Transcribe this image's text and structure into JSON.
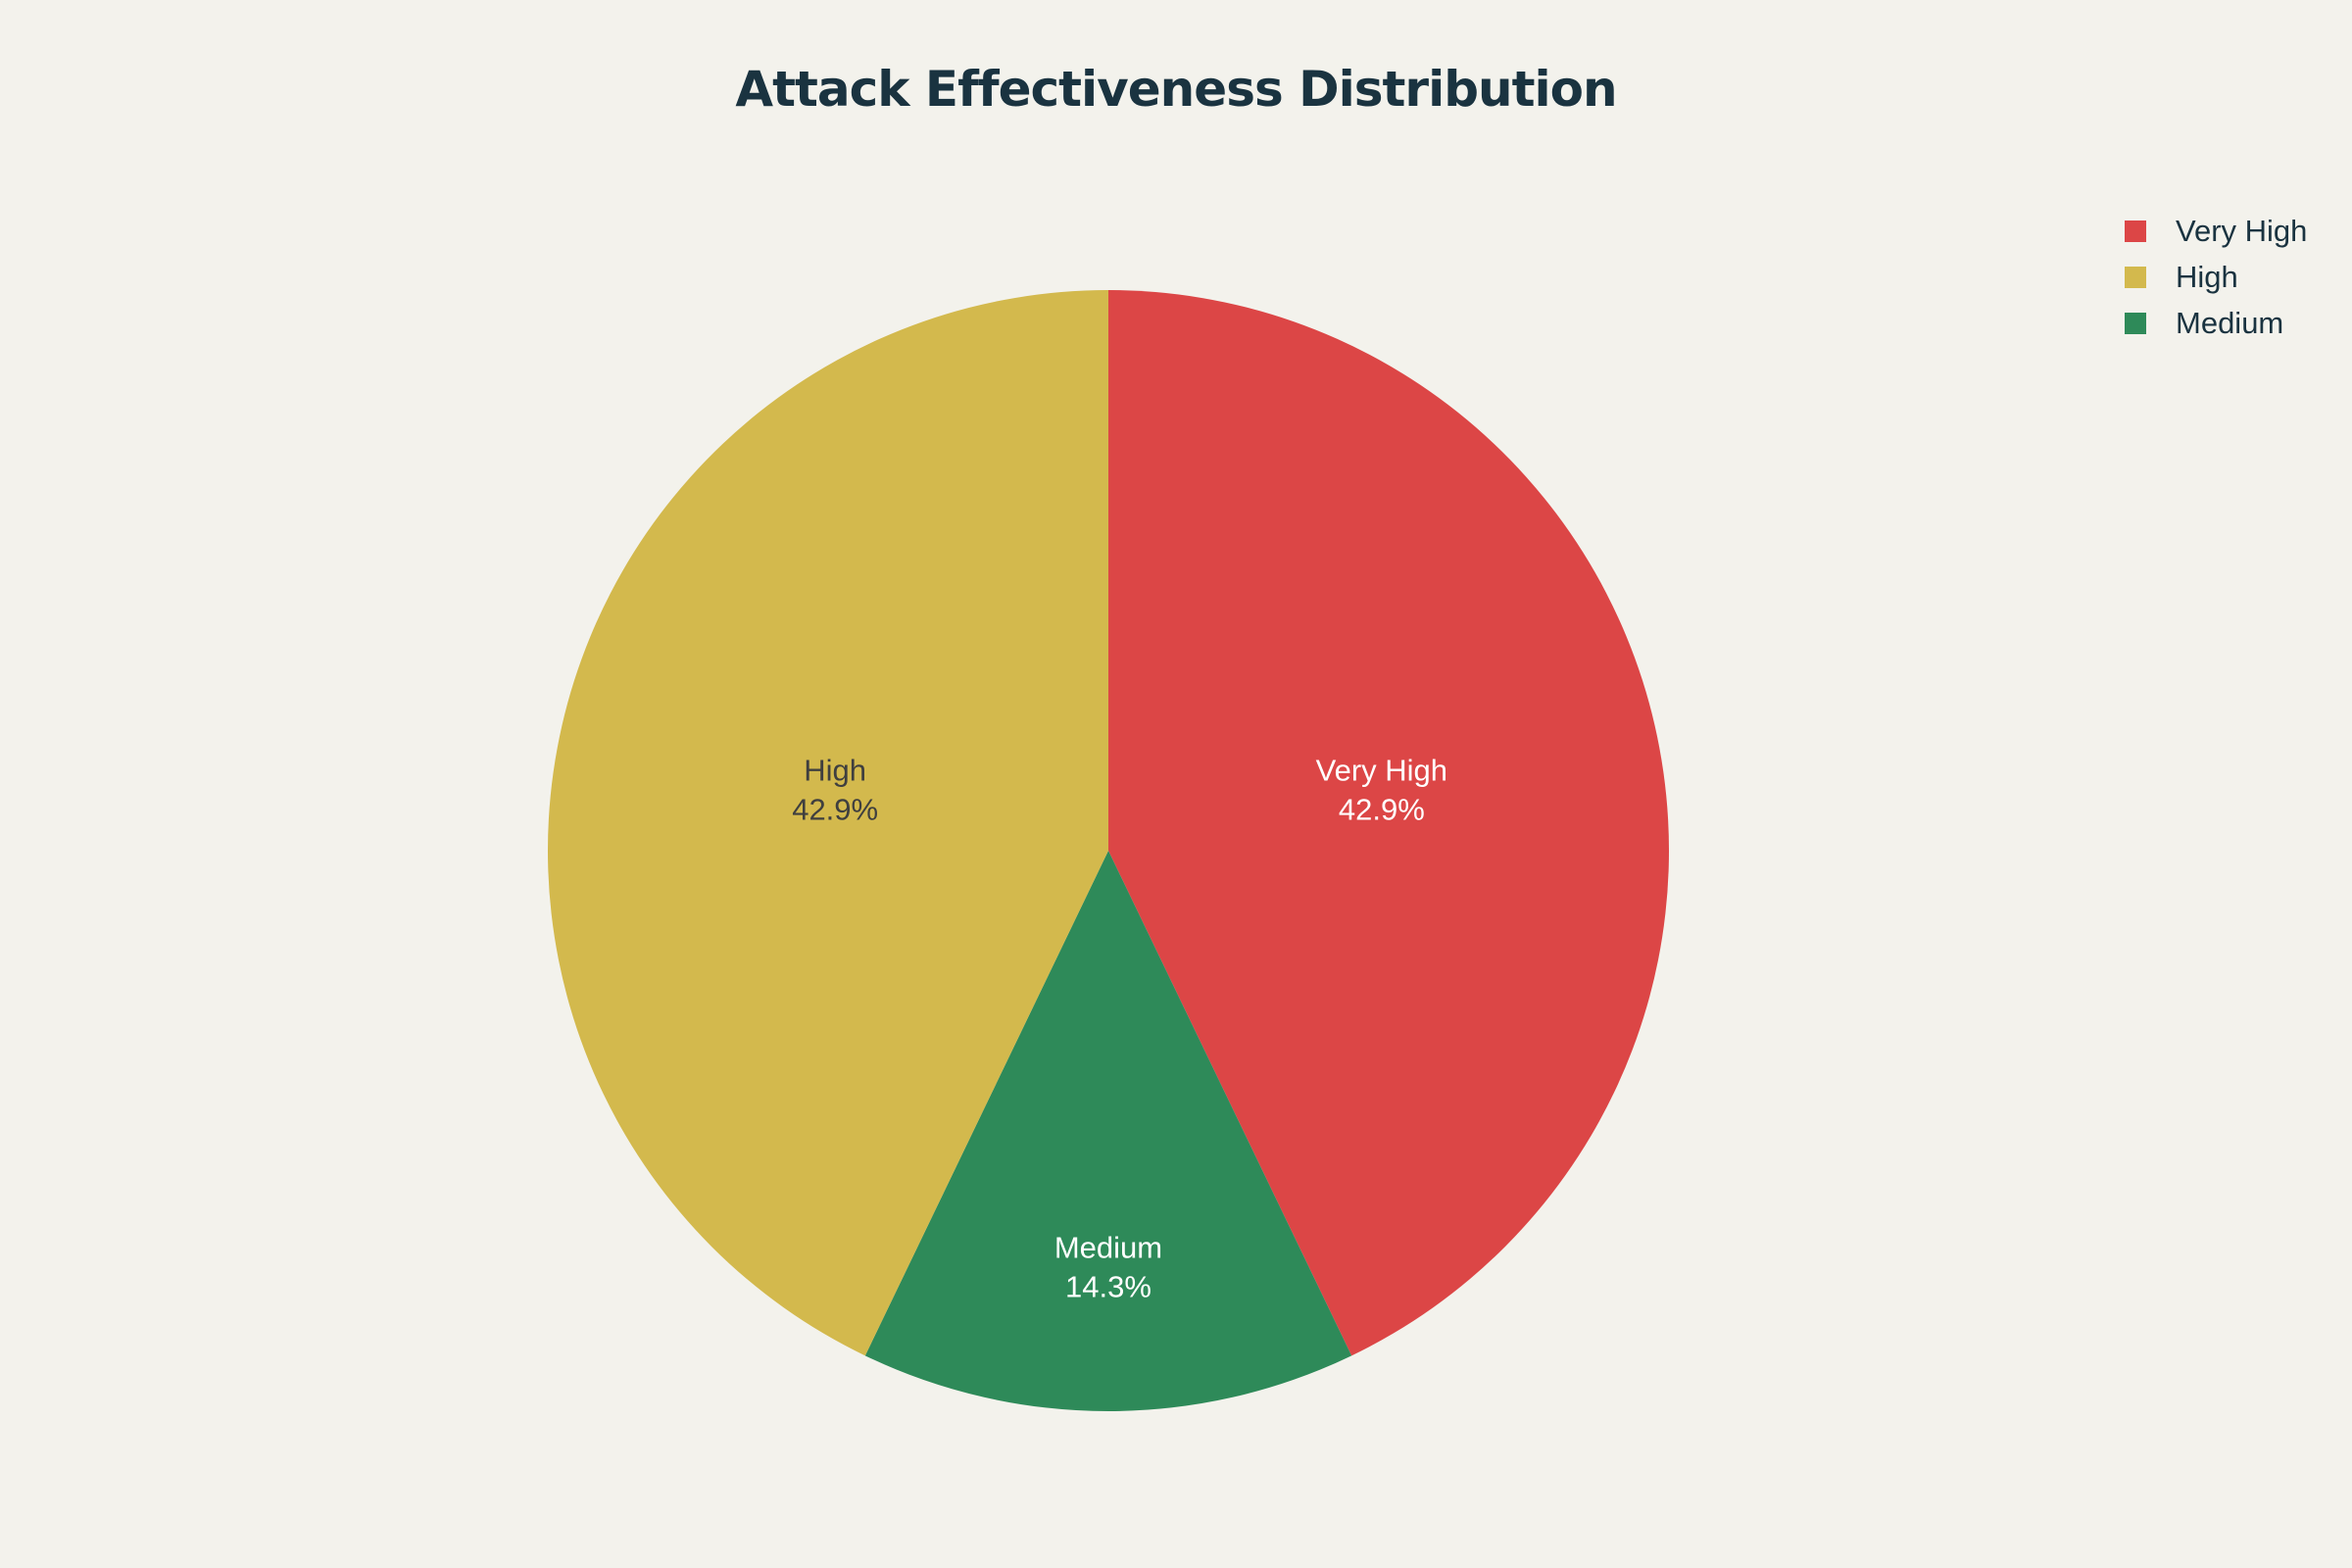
{
  "chart_data": {
    "type": "pie",
    "title": "Attack Effectiveness Distribution",
    "legend_position": "top-right",
    "slices": [
      {
        "label": "Very High",
        "value": 42.9,
        "percent_label": "42.9%",
        "color": "#DC4646",
        "text_color": "#FFFFFF"
      },
      {
        "label": "Medium",
        "value": 14.3,
        "percent_label": "14.3%",
        "color": "#2E8A59",
        "text_color": "#FFFFFF"
      },
      {
        "label": "High",
        "value": 42.9,
        "percent_label": "42.9%",
        "color": "#D3B94D",
        "text_color": "#3F3F3F"
      }
    ],
    "legend": [
      {
        "label": "Very High",
        "color": "#DC4646"
      },
      {
        "label": "High",
        "color": "#D3B94D"
      },
      {
        "label": "Medium",
        "color": "#2E8A59"
      }
    ]
  }
}
